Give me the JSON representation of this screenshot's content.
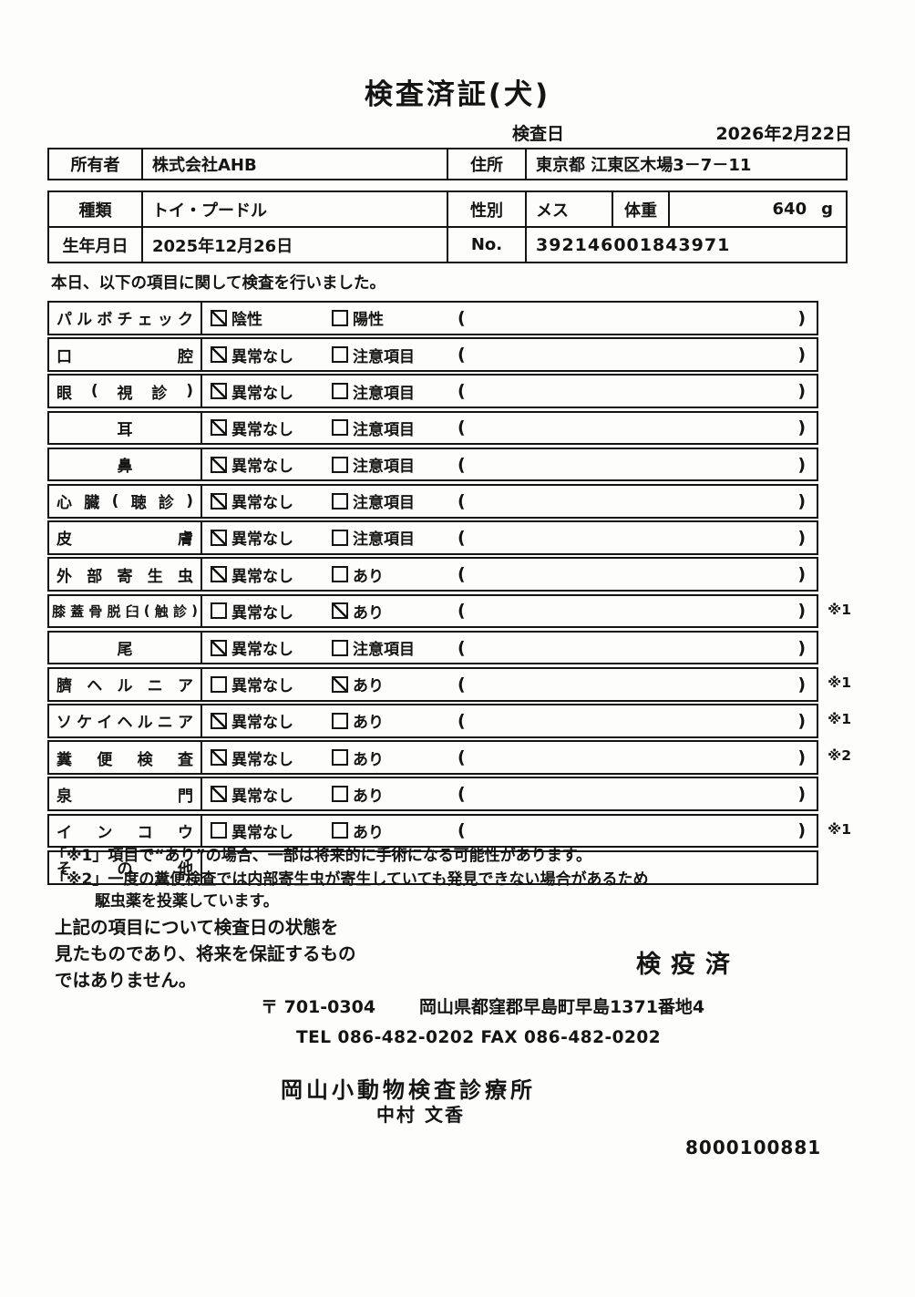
{
  "document": {
    "title": "検査済証(犬)",
    "inspection_date_label": "検査日",
    "inspection_date": "2026年2月22日",
    "intro": "本日、以下の項目に関して検査を行いました。",
    "stamp": "検疫済",
    "serial_number": "8000100881"
  },
  "info": {
    "owner_label": "所有者",
    "owner_value": "株式会社AHB",
    "address_label": "住所",
    "address_value": "東京都 江東区木場3－7－11",
    "breed_label": "種類",
    "breed_value": "トイ・プードル",
    "sex_label": "性別",
    "sex_value": "メス",
    "weight_label": "体重",
    "weight_value": "640",
    "weight_unit": "g",
    "birthdate_label": "生年月日",
    "birthdate_value": "2025年12月26日",
    "no_label": "No.",
    "no_value": "392146001843971"
  },
  "checklist": {
    "rows": [
      {
        "label": "パルボチェック",
        "options": [
          {
            "text": "陰性",
            "checked": true
          },
          {
            "text": "陽性",
            "checked": false
          }
        ],
        "paren": true,
        "note": ""
      },
      {
        "label": "口腔",
        "options": [
          {
            "text": "異常なし",
            "checked": true
          },
          {
            "text": "注意項目",
            "checked": false
          }
        ],
        "paren": true,
        "note": ""
      },
      {
        "label": "眼(視診)",
        "options": [
          {
            "text": "異常なし",
            "checked": true
          },
          {
            "text": "注意項目",
            "checked": false
          }
        ],
        "paren": true,
        "note": ""
      },
      {
        "label": "耳",
        "options": [
          {
            "text": "異常なし",
            "checked": true
          },
          {
            "text": "注意項目",
            "checked": false
          }
        ],
        "paren": true,
        "note": ""
      },
      {
        "label": "鼻",
        "options": [
          {
            "text": "異常なし",
            "checked": true
          },
          {
            "text": "注意項目",
            "checked": false
          }
        ],
        "paren": true,
        "note": ""
      },
      {
        "label": "心臓(聴診)",
        "options": [
          {
            "text": "異常なし",
            "checked": true
          },
          {
            "text": "注意項目",
            "checked": false
          }
        ],
        "paren": true,
        "note": ""
      },
      {
        "label": "皮膚",
        "options": [
          {
            "text": "異常なし",
            "checked": true
          },
          {
            "text": "注意項目",
            "checked": false
          }
        ],
        "paren": true,
        "note": ""
      },
      {
        "label": "外部寄生虫",
        "options": [
          {
            "text": "異常なし",
            "checked": true
          },
          {
            "text": "あり",
            "checked": false
          }
        ],
        "paren": true,
        "note": ""
      },
      {
        "label": "膝蓋骨脱臼(触診)",
        "options": [
          {
            "text": "異常なし",
            "checked": false
          },
          {
            "text": "あり",
            "checked": true
          }
        ],
        "paren": true,
        "note": "※1"
      },
      {
        "label": "尾",
        "options": [
          {
            "text": "異常なし",
            "checked": true
          },
          {
            "text": "注意項目",
            "checked": false
          }
        ],
        "paren": true,
        "note": ""
      },
      {
        "label": "臍ヘルニア",
        "options": [
          {
            "text": "異常なし",
            "checked": false
          },
          {
            "text": "あり",
            "checked": true
          }
        ],
        "paren": true,
        "note": "※1"
      },
      {
        "label": "ソケイヘルニア",
        "options": [
          {
            "text": "異常なし",
            "checked": true
          },
          {
            "text": "あり",
            "checked": false
          }
        ],
        "paren": true,
        "note": "※1"
      },
      {
        "label": "糞便検査",
        "options": [
          {
            "text": "異常なし",
            "checked": true
          },
          {
            "text": "あり",
            "checked": false
          }
        ],
        "paren": true,
        "note": "※2"
      },
      {
        "label": "泉門",
        "options": [
          {
            "text": "異常なし",
            "checked": true
          },
          {
            "text": "あり",
            "checked": false
          }
        ],
        "paren": true,
        "note": ""
      },
      {
        "label": "インコウ",
        "options": [
          {
            "text": "異常なし",
            "checked": false
          },
          {
            "text": "あり",
            "checked": false
          }
        ],
        "paren": true,
        "note": "※1"
      },
      {
        "label": "その他",
        "options": [],
        "paren": false,
        "note": ""
      }
    ]
  },
  "footnotes": {
    "note1": "「※1」項目で“あり”の場合、一部は将来的に手術になる可能性があります。",
    "note2_line1": "「※2」一度の糞便検査では内部寄生虫が寄生していても発見できない場合があるため",
    "note2_line2": "駆虫薬を投薬しています。"
  },
  "disclaimer": {
    "line1": "上記の項目について検査日の状態を",
    "line2": "見たものであり、将来を保証するもの",
    "line3": "ではありません。"
  },
  "clinic": {
    "postal": "〒 701-0304",
    "address": "岡山県都窪郡早島町早島1371番地4",
    "tel_fax": "TEL 086-482-0202  FAX 086-482-0202",
    "name": "岡山小動物検査診療所",
    "veterinarian": "中村 文香"
  }
}
